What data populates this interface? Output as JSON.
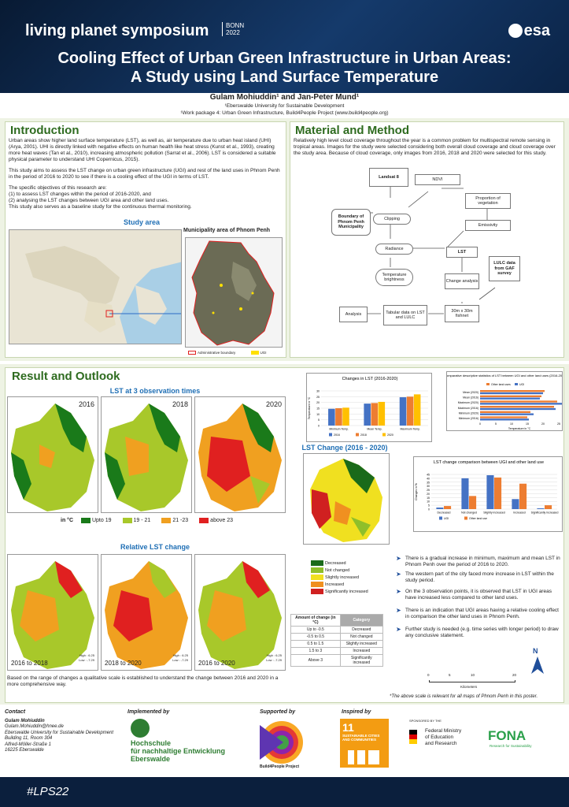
{
  "header": {
    "event": "living planet symposium",
    "location_line1": "BONN",
    "location_line2": "2022",
    "agency": "esa",
    "title_line1": "Cooling Effect of Urban Green Infrastructure in Urban Areas:",
    "title_line2": "A Study using Land Surface Temperature",
    "authors": "Gulam Mohiuddin¹ and Jan-Peter Mund¹",
    "affiliation1": "¹Eberswalde University for Sustainable Development",
    "affiliation2": "¹Work package 4: Urban Green Infrastructure, Build4People Project (www.build4people.org)"
  },
  "intro": {
    "heading": "Introduction",
    "p1": "Urban areas show higher land surface temperature (LST), as well as, air temperature due to urban heat island (UHI) (Arya, 2001). UHI is directly linked with negative effects on human health like heat stress (Kunst et al., 1993), creating more heat waves (Tan et al., 2010), increasing atmospheric pollution (Sarrat et al., 2006). LST is considered a suitable physical parameter to understand UHI Copernicus, 2015).",
    "p2": "This study aims to assess the LST change on urban green infrastructure (UGI) and rest of the land uses in Phnom Penh in the period of 2016 to 2020 to see if there is a cooling effect of the UGI in terms of LST.",
    "p3": "The specific objectives of this research are:",
    "p4": "(1) to assess LST changes within the period of 2016-2020, and",
    "p5": "(2) analysing the LST changes between UGI area and other land uses.",
    "p6": "This study also serves as a baseline study for the continuous thermal monitoring.",
    "study_area": "Study area",
    "municipality": "Municipality area of Phnom Penh",
    "legend_admin": "Administrative boundary",
    "legend_ugi": "UGI"
  },
  "method": {
    "heading": "Material and Method",
    "text": "Relatively high level cloud coverage throughout the year is a common problem for multispectral remote sensing in tropical areas. Images for the study were selected considering both overall cloud coverage and cloud coverage over the study area. Because of cloud coverage, only images from 2016, 2018 and 2020 were selected for this study.",
    "flow": {
      "landsat": "Landsat 8",
      "boundary": "Boundary of Phnom Penh Municipality",
      "clipping": "Clipping",
      "ndvi": "NDVI",
      "proportion": "Proportion of vegetation",
      "emissivity": "Emissivity",
      "radiance": "Radiance",
      "lst": "LST",
      "lulc": "LULC data from GAF survey",
      "brightness": "Temperature brightness",
      "change": "Change analysis",
      "fishnet": "30m x 30m fishnet",
      "tabular": "Tabular data on LST and LULC",
      "analysis": "Analysis"
    }
  },
  "results": {
    "heading": "Result and Outlook",
    "lst3_title": "LST at 3 observation times",
    "years": [
      "2016",
      "2018",
      "2020"
    ],
    "legend_unit": "in °C",
    "legend_items": [
      {
        "label": "Upto 19",
        "color": "#1a7a1a"
      },
      {
        "label": "19 - 21",
        "color": "#a8c82a"
      },
      {
        "label": "21 -23",
        "color": "#f0a020"
      },
      {
        "label": "above 23",
        "color": "#e02020"
      }
    ],
    "relative_title": "Relative LST change",
    "relative_maps": [
      "2016 to 2018",
      "2018 to 2020",
      "2016 to 2020"
    ],
    "relative_high": "High : 6.25",
    "relative_low": "Low : -7.29",
    "relative_caption": "Based on the range of changes a qualitative scale is established to understand the change between 2016 and 2020 in a more comprehensive way.",
    "change_title": "LST Change (2016 - 2020)",
    "change_legend": [
      {
        "label": "Decreased",
        "color": "#1a6a1a"
      },
      {
        "label": "Not changed",
        "color": "#8fbf2a"
      },
      {
        "label": "Slightly increased",
        "color": "#f0e020"
      },
      {
        "label": "Increased",
        "color": "#f09020"
      },
      {
        "label": "Significantly increased",
        "color": "#d02020"
      }
    ],
    "table_headers": [
      "Amount of change (in °C)",
      "Category"
    ],
    "table_rows": [
      [
        "Up to -0.5",
        "Decreased"
      ],
      [
        "-0.5 to 0.5",
        "Not changed"
      ],
      [
        "0.5 to 1.5",
        "Slightly increased"
      ],
      [
        "1.5 to 3",
        "Increased"
      ],
      [
        "Above 3",
        "Significantly increased"
      ]
    ],
    "bullets": [
      "There is a gradual increase in minimum, maximum and mean LST in Phnom Penh over the period of 2016 to 2020.",
      "The western part of the city faced more increase in LST within the study period.",
      "On the 3 observation points, it is observed that LST in UGI areas have increased less compared to other land uses.",
      "There is an indication that UGI areas having a relative cooling effect in comparison the other land uses in Phnom Penh.",
      "Further study is needed (e.g. time series with longer period) to draw any conclusive statement."
    ],
    "scale_labels": [
      "0",
      "5",
      "10",
      "20"
    ],
    "scale_unit": "Kilometers",
    "north": "N",
    "scale_note": "*The above scale is relevant for all maps of Phnom Penh in this poster."
  },
  "chart_data": [
    {
      "type": "bar",
      "title": "Changes in LST (2016-2020)",
      "ylabel": "Temperature in °C",
      "categories": [
        "Minimum Temp.",
        "Mean Temp.",
        "Maximum Temp."
      ],
      "series": [
        {
          "name": "2016",
          "values": [
            14.5,
            19,
            24.5
          ],
          "color": "#4472c4"
        },
        {
          "name": "2018",
          "values": [
            15,
            19.5,
            25
          ],
          "color": "#ed7d31"
        },
        {
          "name": "2020",
          "values": [
            15.5,
            20.5,
            27
          ],
          "color": "#ffc000"
        }
      ],
      "ylim": [
        0,
        30
      ]
    },
    {
      "type": "bar",
      "title": "Comparative descriptive statistics of LST between UGI and other land uses (2016-2020)",
      "xlabel": "Temperature in °C",
      "categories": [
        "Mean (2020)",
        "Mean (2016)",
        "Maximum (2020)",
        "Maximum (2016)",
        "Minimum (2020)",
        "Minimum (2016)"
      ],
      "series": [
        {
          "name": "Other land uses",
          "values": [
            20.5,
            19.5,
            24.5,
            23.5,
            16,
            15
          ],
          "color": "#ed7d31"
        },
        {
          "name": "UGI",
          "values": [
            20,
            19,
            26,
            24,
            17,
            15.5
          ],
          "color": "#4472c4"
        }
      ],
      "xlim": [
        0,
        25
      ]
    },
    {
      "type": "bar",
      "title": "LST change comparison between UGI and other land use",
      "ylabel": "Changes in %",
      "categories": [
        "Decreased",
        "Not changed",
        "Slightly increased",
        "Increased",
        "Significantly increased"
      ],
      "series": [
        {
          "name": "UGI",
          "values": [
            2,
            40,
            44,
            13,
            1
          ],
          "color": "#4472c4"
        },
        {
          "name": "Other land use",
          "values": [
            4,
            17,
            41,
            33,
            5
          ],
          "color": "#ed7d31"
        }
      ],
      "ylim": [
        0,
        45
      ]
    }
  ],
  "footer": {
    "contact_heading": "Contact",
    "contact_lines": [
      "Gulam Mohiuddin",
      "Gulam.Mohiuddin@hnee.de",
      "Eberswalde University for Sustainable Development",
      "Building 11, Room 304",
      "Alfred-Möller-Straße 1",
      "16225 Eberswalde"
    ],
    "implemented_by": "Implemented by",
    "hnee_lines": [
      "Hochschule",
      "für nachhaltige Entwicklung",
      "Eberswalde"
    ],
    "supported_by": "Supported by",
    "b4p": "Build4People Project",
    "inspired_by": "Inspired by",
    "sdg_number": "11",
    "sdg_text": "SUSTAINABLE CITIES AND COMMUNITIES",
    "sponsored": "SPONSORED BY THE",
    "bmbf_lines": [
      "Federal Ministry",
      "of Education",
      "and Research"
    ],
    "fona": "FONA",
    "fona_sub": "Research for Sustainability",
    "hashtag": "#LPS22"
  },
  "colors": {
    "header": "#0b2447",
    "section_green": "#2e6b1f",
    "accent_blue": "#1f6fb5"
  }
}
